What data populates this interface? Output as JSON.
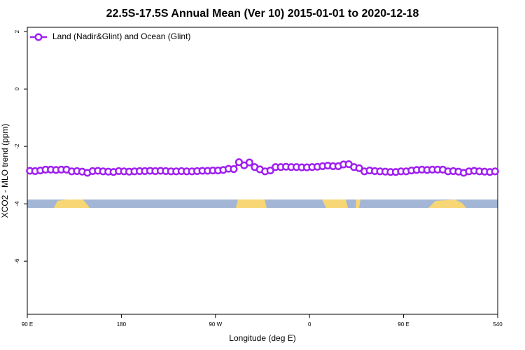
{
  "chart_data": {
    "type": "line",
    "title": "22.5S-17.5S Annual Mean (Ver 10)   2015-01-01 to 2020-12-18",
    "x_label": "Longitude (deg E)",
    "y_label": "XCO2 - MLO trend (ppm)",
    "xlim": [
      90,
      540
    ],
    "ylim": [
      -7.85,
      2.15
    ],
    "xticks": [
      {
        "value": 90,
        "label": "90 E"
      },
      180,
      {
        "value": 270,
        "label": "90 W"
      },
      {
        "value": 360,
        "label": "0"
      },
      {
        "value": 450,
        "label": "90 E"
      },
      540
    ],
    "yticks": [
      2,
      0,
      -2,
      -4,
      -6
    ],
    "legend": "top-left",
    "x": [
      92.5,
      97.5,
      102.5,
      107.5,
      112.5,
      117.5,
      122.5,
      127.5,
      132.5,
      137.5,
      142.5,
      147.5,
      152.5,
      157.5,
      162.5,
      167.5,
      172.5,
      177.5,
      182.5,
      187.5,
      192.5,
      197.5,
      202.5,
      207.5,
      212.5,
      217.5,
      222.5,
      227.5,
      232.5,
      237.5,
      242.5,
      247.5,
      252.5,
      257.5,
      262.5,
      267.5,
      272.5,
      277.5,
      282.5,
      287.5,
      292.5,
      297.5,
      302.5,
      307.5,
      312.5,
      317.5,
      322.5,
      327.5,
      332.5,
      337.5,
      342.5,
      347.5,
      352.5,
      357.5,
      362.5,
      367.5,
      372.5,
      377.5,
      382.5,
      387.5,
      392.5,
      397.5,
      402.5,
      407.5,
      412.5,
      417.5,
      422.5,
      427.5,
      432.5,
      437.5,
      442.5,
      447.5,
      452.5,
      457.5,
      462.5,
      467.5,
      472.5,
      477.5,
      482.5,
      487.5,
      492.5,
      497.5,
      502.5,
      507.5,
      512.5,
      517.5,
      522.5,
      527.5,
      532.5,
      537.5
    ],
    "series": [
      {
        "name": "Land (Nadir&Glint) and Ocean (Glint)",
        "color": "#a020f0",
        "values": [
          -2.85,
          -2.86,
          -2.84,
          -2.81,
          -2.81,
          -2.82,
          -2.81,
          -2.81,
          -2.87,
          -2.86,
          -2.88,
          -2.92,
          -2.86,
          -2.85,
          -2.87,
          -2.88,
          -2.89,
          -2.86,
          -2.87,
          -2.88,
          -2.87,
          -2.86,
          -2.86,
          -2.85,
          -2.86,
          -2.85,
          -2.86,
          -2.87,
          -2.87,
          -2.86,
          -2.87,
          -2.87,
          -2.86,
          -2.85,
          -2.85,
          -2.84,
          -2.84,
          -2.82,
          -2.78,
          -2.79,
          -2.55,
          -2.66,
          -2.56,
          -2.72,
          -2.8,
          -2.87,
          -2.84,
          -2.72,
          -2.72,
          -2.71,
          -2.72,
          -2.72,
          -2.73,
          -2.73,
          -2.72,
          -2.71,
          -2.69,
          -2.67,
          -2.69,
          -2.69,
          -2.63,
          -2.62,
          -2.72,
          -2.76,
          -2.87,
          -2.84,
          -2.86,
          -2.87,
          -2.88,
          -2.89,
          -2.89,
          -2.87,
          -2.87,
          -2.84,
          -2.82,
          -2.81,
          -2.82,
          -2.81,
          -2.81,
          -2.81,
          -2.87,
          -2.86,
          -2.88,
          -2.92,
          -2.87,
          -2.85,
          -2.87,
          -2.88,
          -2.89,
          -2.87
        ]
      }
    ]
  }
}
